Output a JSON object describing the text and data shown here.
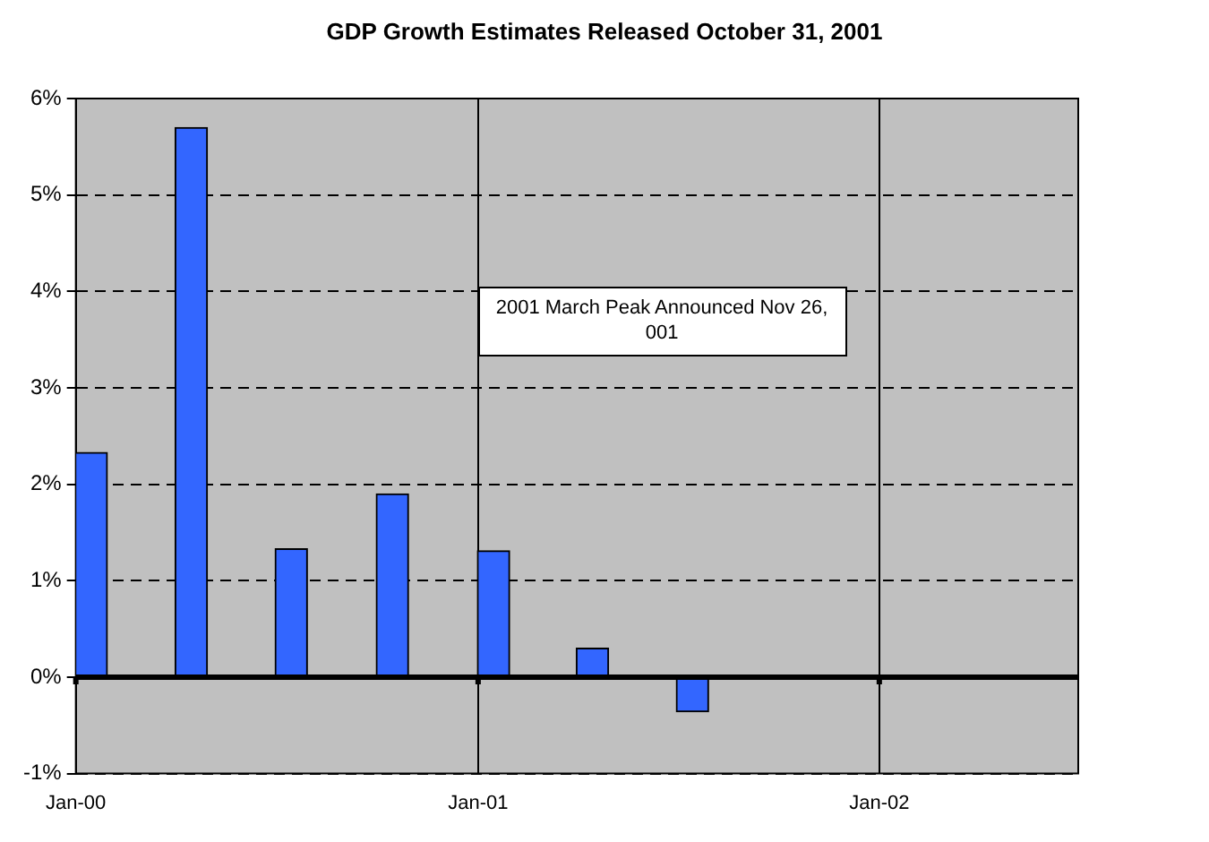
{
  "chart_data": {
    "type": "bar",
    "title": "GDP Growth Estimates Released October 31, 2001",
    "x": [
      "2000-01-15",
      "2000-04-15",
      "2000-07-15",
      "2000-10-15",
      "2001-01-15",
      "2001-04-15",
      "2001-07-15"
    ],
    "values": [
      2.33,
      5.7,
      1.33,
      1.9,
      1.31,
      0.3,
      -0.36
    ],
    "color": "#3366ff",
    "xlim": [
      "2000-01",
      "2002-07"
    ],
    "xticks": [
      {
        "value": "2000-01",
        "label": "Jan-00"
      },
      {
        "value": "2001-01",
        "label": "Jan-01"
      },
      {
        "value": "2002-01",
        "label": "Jan-02"
      }
    ],
    "ylim": [
      -1,
      6
    ],
    "yticks": [
      {
        "value": -1,
        "label": "-1%"
      },
      {
        "value": 0,
        "label": "0%"
      },
      {
        "value": 1,
        "label": "1%"
      },
      {
        "value": 2,
        "label": "2%"
      },
      {
        "value": 3,
        "label": "3%"
      },
      {
        "value": 4,
        "label": "4%"
      },
      {
        "value": 5,
        "label": "5%"
      },
      {
        "value": 6,
        "label": "6%"
      }
    ],
    "ref_lines": [
      {
        "axis": "y",
        "value": 0,
        "color": "#000000"
      }
    ],
    "annotations": [
      "2001 March Peak Announced Nov 26, 001"
    ],
    "grid": true,
    "legend": false
  }
}
